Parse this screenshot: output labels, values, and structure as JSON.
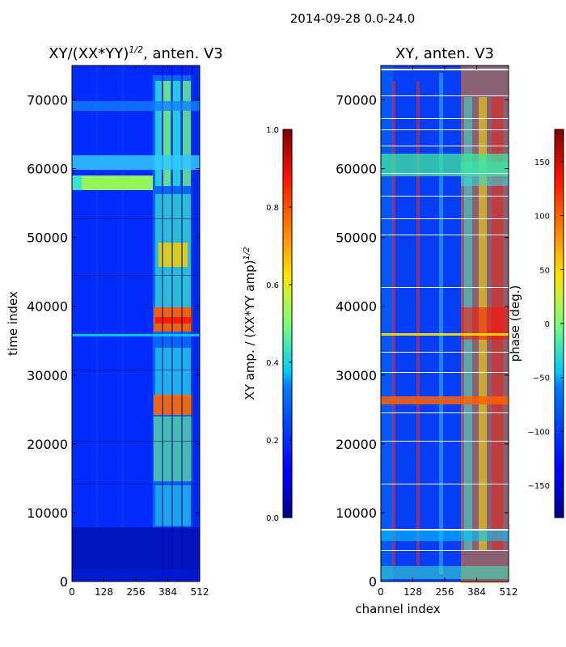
{
  "suptitle": "2014-09-28 0.0-24.0",
  "chart_data": [
    {
      "type": "heatmap",
      "title_main": "XY/(XX*YY)",
      "title_exp": "1/2",
      "title_tail": ", anten. V3",
      "xlabel": "",
      "ylabel": "time index",
      "xlim": [
        0,
        512
      ],
      "ylim": [
        0,
        75000
      ],
      "xticks": [
        0,
        128,
        256,
        384,
        512
      ],
      "yticks": [
        0,
        10000,
        20000,
        30000,
        40000,
        50000,
        60000,
        70000
      ],
      "colorbar": {
        "label_main": "XY amp. / (XX*YY amp)",
        "label_exp": "1/2",
        "range": [
          0,
          1
        ],
        "ticks": [
          "0.0",
          "0.2",
          "0.4",
          "0.6",
          "0.8",
          "1.0"
        ],
        "tick_values": [
          0,
          0.2,
          0.4,
          0.6,
          0.8,
          1.0
        ]
      }
    },
    {
      "type": "heatmap",
      "title_main": "XY, anten. V3",
      "xlabel": "channel index",
      "ylabel": "",
      "xlim": [
        0,
        512
      ],
      "ylim": [
        0,
        75000
      ],
      "xticks": [
        0,
        128,
        256,
        384,
        512
      ],
      "yticks": [
        0,
        10000,
        20000,
        30000,
        40000,
        50000,
        60000,
        70000
      ],
      "colorbar": {
        "label_main": "phase (deg.)",
        "range": [
          -180,
          180
        ],
        "ticks": [
          "−150",
          "−100",
          "−50",
          "0",
          "50",
          "100",
          "150"
        ],
        "tick_values": [
          -150,
          -100,
          -50,
          0,
          50,
          100,
          150
        ]
      }
    }
  ]
}
